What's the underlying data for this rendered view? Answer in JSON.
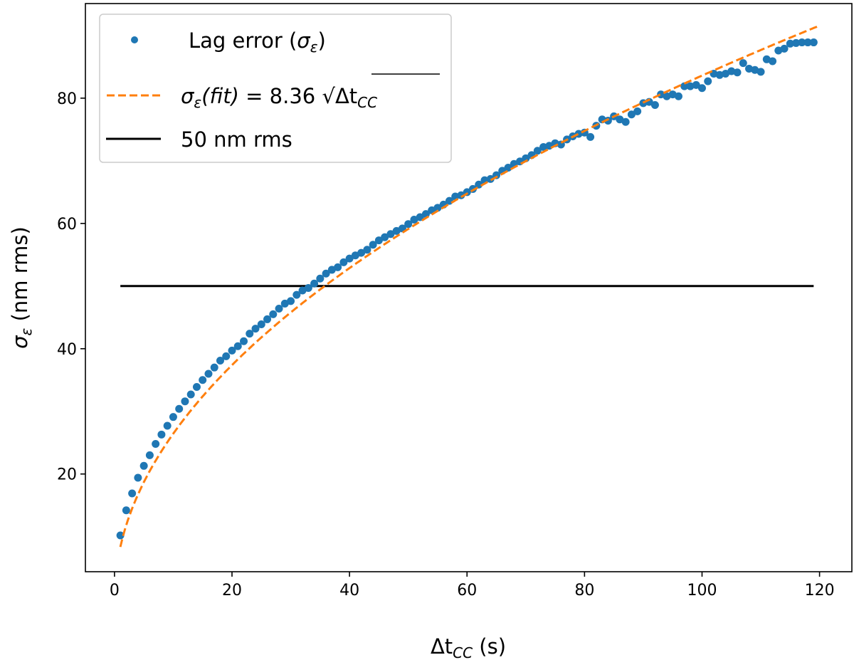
{
  "chart_data": {
    "type": "scatter",
    "xlabel": {
      "main": "Δt",
      "sub": "CC",
      "unit": " (s)",
      "full": "Δt_CC (s)"
    },
    "ylabel": {
      "main": "σ",
      "sub": "ε",
      "unit": " (nm rms)",
      "full": "σ_ε (nm rms)"
    },
    "xlim": [
      -4.95,
      125.5
    ],
    "ylim": [
      4.4,
      95.1
    ],
    "xticks": [
      0,
      20,
      40,
      60,
      80,
      100,
      120
    ],
    "yticks": [
      20,
      40,
      60,
      80
    ],
    "grid": false,
    "legend_placement": "top-left",
    "colors": {
      "data": "#1f77b4",
      "fit": "#ff7f0e",
      "threshold": "#000000"
    },
    "series": [
      {
        "name": "Lag error (σε)",
        "kind": "scatter",
        "x": [
          1,
          2,
          3,
          4,
          5,
          6,
          7,
          8,
          9,
          10,
          11,
          12,
          13,
          14,
          15,
          16,
          17,
          18,
          19,
          20,
          21,
          22,
          23,
          24,
          25,
          26,
          27,
          28,
          29,
          30,
          31,
          32,
          33,
          34,
          35,
          36,
          37,
          38,
          39,
          40,
          41,
          42,
          43,
          44,
          45,
          46,
          47,
          48,
          49,
          50,
          51,
          52,
          53,
          54,
          55,
          56,
          57,
          58,
          59,
          60,
          61,
          62,
          63,
          64,
          65,
          66,
          67,
          68,
          69,
          70,
          71,
          72,
          73,
          74,
          75,
          76,
          77,
          78,
          79,
          80,
          81,
          82,
          83,
          84,
          85,
          86,
          87,
          88,
          89,
          90,
          91,
          92,
          93,
          94,
          95,
          96,
          97,
          98,
          99,
          100,
          101,
          102,
          103,
          104,
          105,
          106,
          107,
          108,
          109,
          110,
          111,
          112,
          113,
          114,
          115,
          116,
          117,
          118,
          119
        ],
        "y": [
          10.2,
          14.2,
          16.9,
          19.4,
          21.3,
          23.0,
          24.8,
          26.3,
          27.7,
          29.1,
          30.4,
          31.6,
          32.7,
          33.9,
          35.0,
          36.0,
          37.0,
          38.1,
          38.8,
          39.7,
          40.4,
          41.2,
          42.4,
          43.2,
          43.9,
          44.7,
          45.5,
          46.4,
          47.2,
          47.6,
          48.6,
          49.3,
          49.7,
          50.4,
          51.2,
          52.0,
          52.6,
          53.0,
          53.8,
          54.4,
          54.9,
          55.3,
          55.8,
          56.6,
          57.3,
          57.8,
          58.3,
          58.8,
          59.2,
          59.9,
          60.6,
          61.0,
          61.5,
          62.1,
          62.5,
          63.0,
          63.6,
          64.3,
          64.5,
          65.0,
          65.5,
          66.2,
          66.9,
          67.1,
          67.7,
          68.4,
          68.9,
          69.5,
          69.9,
          70.4,
          70.9,
          71.6,
          72.2,
          72.4,
          72.8,
          72.6,
          73.4,
          73.9,
          74.3,
          74.5,
          73.8,
          75.6,
          76.6,
          76.4,
          77.1,
          76.6,
          76.2,
          77.4,
          77.9,
          79.2,
          79.4,
          78.9,
          80.6,
          80.3,
          80.6,
          80.3,
          81.9,
          81.9,
          82.1,
          81.6,
          82.7,
          83.9,
          83.7,
          83.9,
          84.3,
          84.1,
          85.6,
          84.7,
          84.5,
          84.2,
          86.2,
          85.9,
          87.6,
          87.9,
          88.7,
          88.8,
          88.9,
          88.9,
          88.9
        ]
      },
      {
        "name": "σε(fit) = 8.36 √ΔtCC",
        "kind": "line-dashed",
        "formula": "8.36*sqrt(x)",
        "coefficient": 8.36,
        "x_range": [
          1,
          120
        ]
      },
      {
        "name": "50 nm rms",
        "kind": "hline",
        "y": 50,
        "x_range": [
          1,
          119
        ]
      }
    ],
    "legend": [
      {
        "parts": {
          "a": "Lag error (",
          "b": "σ",
          "c": "ε",
          "d": ")"
        }
      },
      {
        "parts": {
          "a": "σ",
          "b": "ε",
          "c": "(fit)",
          "d": " = 8.36 ",
          "e": "√",
          "f": "Δt",
          "g": "CC"
        }
      },
      {
        "parts": {
          "a": "50 nm rms"
        }
      }
    ]
  }
}
